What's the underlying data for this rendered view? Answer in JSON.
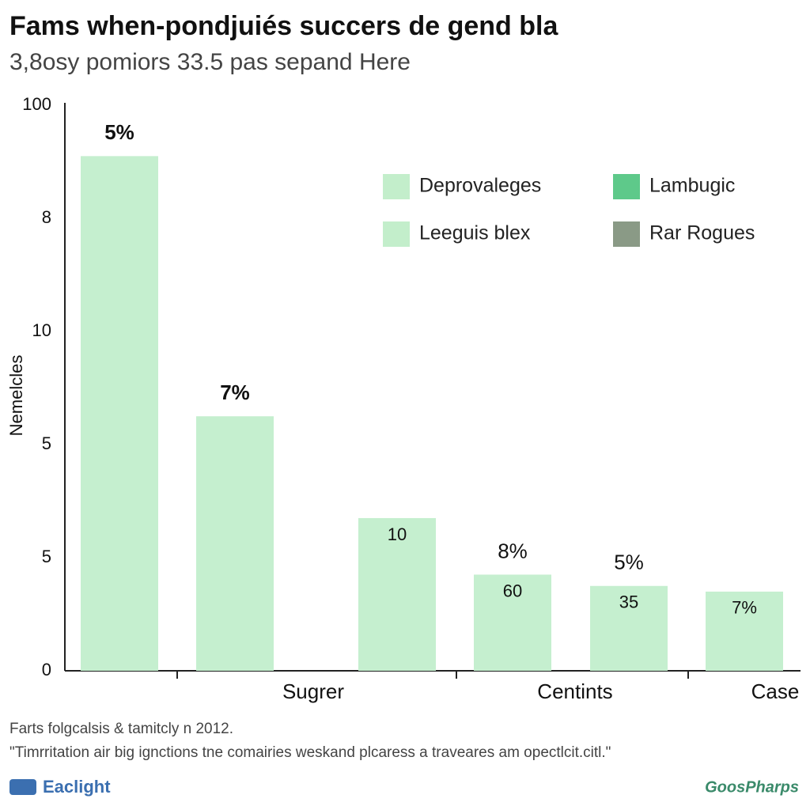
{
  "chart_data": {
    "type": "bar",
    "title": "Fams when-pondjuiés succers de gend bla",
    "subtitle": "3,8osy pomiors 33.5 pas sepand Here",
    "y_label": "Nemelcles",
    "categories": [
      null,
      "Sugrer",
      null,
      "Centints",
      null,
      "Case"
    ],
    "values": [
      91,
      45,
      27,
      17,
      15,
      14
    ],
    "labels_above": [
      "5%",
      "7%",
      null,
      "8%",
      "5%",
      null
    ],
    "labels_inside": [
      null,
      null,
      "10",
      "60",
      "35",
      "7%"
    ],
    "color": "#c5efcf",
    "ylim": [
      0,
      100
    ],
    "yticks": [
      {
        "value": 0,
        "label": "0"
      },
      {
        "value": 20,
        "label": "5"
      },
      {
        "value": 40,
        "label": "5"
      },
      {
        "value": 60,
        "label": "10"
      },
      {
        "value": 80,
        "label": "8"
      },
      100
    ],
    "legend": [
      {
        "name": "Deprovaleges",
        "color": "#c3eecb"
      },
      {
        "name": "Lambugic",
        "color": "#5ec98a"
      },
      {
        "name": "Leeguis blex",
        "color": "#c3eecb"
      },
      {
        "name": "Rar Rogues",
        "color": "#8a9a86"
      }
    ],
    "source": "Farts folgcalsis & tamitcly n 2012.",
    "note": "\"Timrritation air big ignctions tne comairies weskand plcaress a traveares am opectlcit.citl.\"",
    "brand_left": "Eaclight",
    "brand_right": "GoosPharps"
  }
}
